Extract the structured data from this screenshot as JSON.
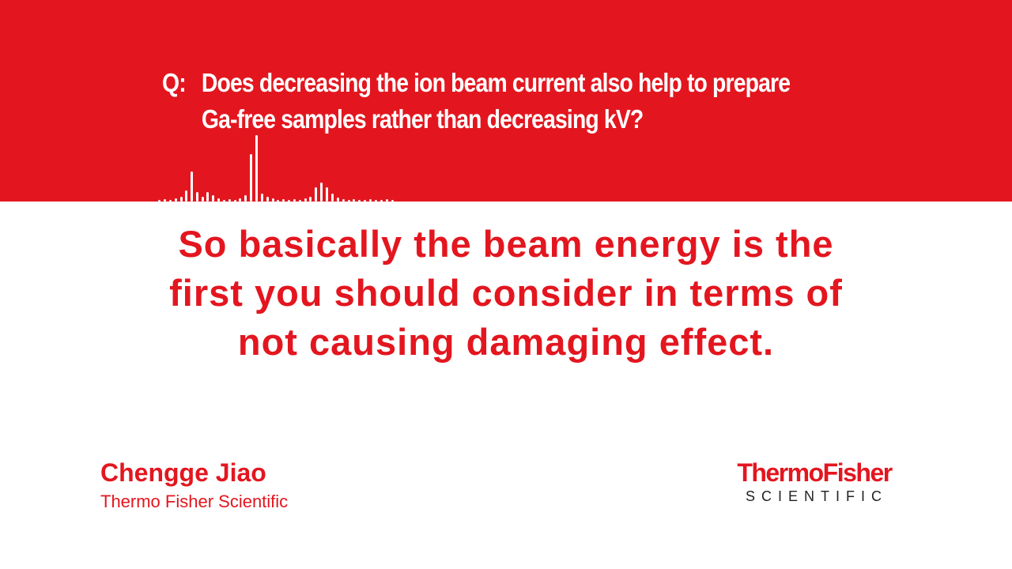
{
  "question": {
    "prefix": "Q:",
    "line1": "Does decreasing the ion beam current also help to prepare",
    "line2": "Ga-free samples rather than decreasing kV?"
  },
  "caption": {
    "line1": "So basically the beam energy is the",
    "line2": "first you should consider in terms of",
    "line3": "not causing damaging effect."
  },
  "speaker": {
    "name": "Chengge Jiao",
    "organization": "Thermo Fisher Scientific"
  },
  "logo": {
    "wordmark": "ThermoFisher",
    "tagline": "SCIENTIFIC"
  },
  "colors": {
    "brand_red": "#e3161f",
    "background": "#ffffff",
    "text_on_red": "#ffffff",
    "logo_dark": "#231f20"
  },
  "icons": {
    "audio_waveform": "audio-waveform-icon"
  }
}
